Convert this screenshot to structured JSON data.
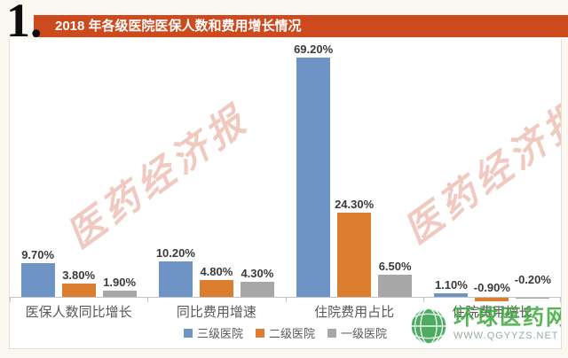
{
  "header": {
    "number": "1.",
    "title": "2018 年各级医院医保人数和费用增长情况",
    "bar_color": "#cd4a1e"
  },
  "watermarks": {
    "stamp": "医药经济报",
    "brand": {
      "name": "环球医药网",
      "url": "WWW.QGYYZS.NET",
      "registered": "®",
      "color": "#3ba93b"
    }
  },
  "chart_data": {
    "type": "bar",
    "title": "2018 年各级医院医保人数和费用增长情况",
    "categories": [
      "医保人数同比增长",
      "同比费用增速",
      "住院费用占比",
      "住院费用增长"
    ],
    "series": [
      {
        "name": "三级医院",
        "color": "#6d94c4",
        "values": [
          9.7,
          10.2,
          69.2,
          1.1
        ],
        "labels": [
          "9.70%",
          "10.20%",
          "69.20%",
          "1.10%"
        ]
      },
      {
        "name": "二级医院",
        "color": "#dc7e2f",
        "values": [
          3.8,
          4.8,
          24.3,
          -0.9
        ],
        "labels": [
          "3.80%",
          "4.80%",
          "24.30%",
          "-0.90%"
        ]
      },
      {
        "name": "一级医院",
        "color": "#a7a7a7",
        "values": [
          1.9,
          4.3,
          6.5,
          -0.2
        ],
        "labels": [
          "1.90%",
          "4.30%",
          "6.50%",
          "-0.20%"
        ]
      }
    ],
    "ylabel": "",
    "xlabel": "",
    "ylim": [
      -2,
      75
    ],
    "grid": false,
    "legend_position": "bottom",
    "axis_color": "#c2c2c2",
    "label_color": "#3a3a3a"
  }
}
